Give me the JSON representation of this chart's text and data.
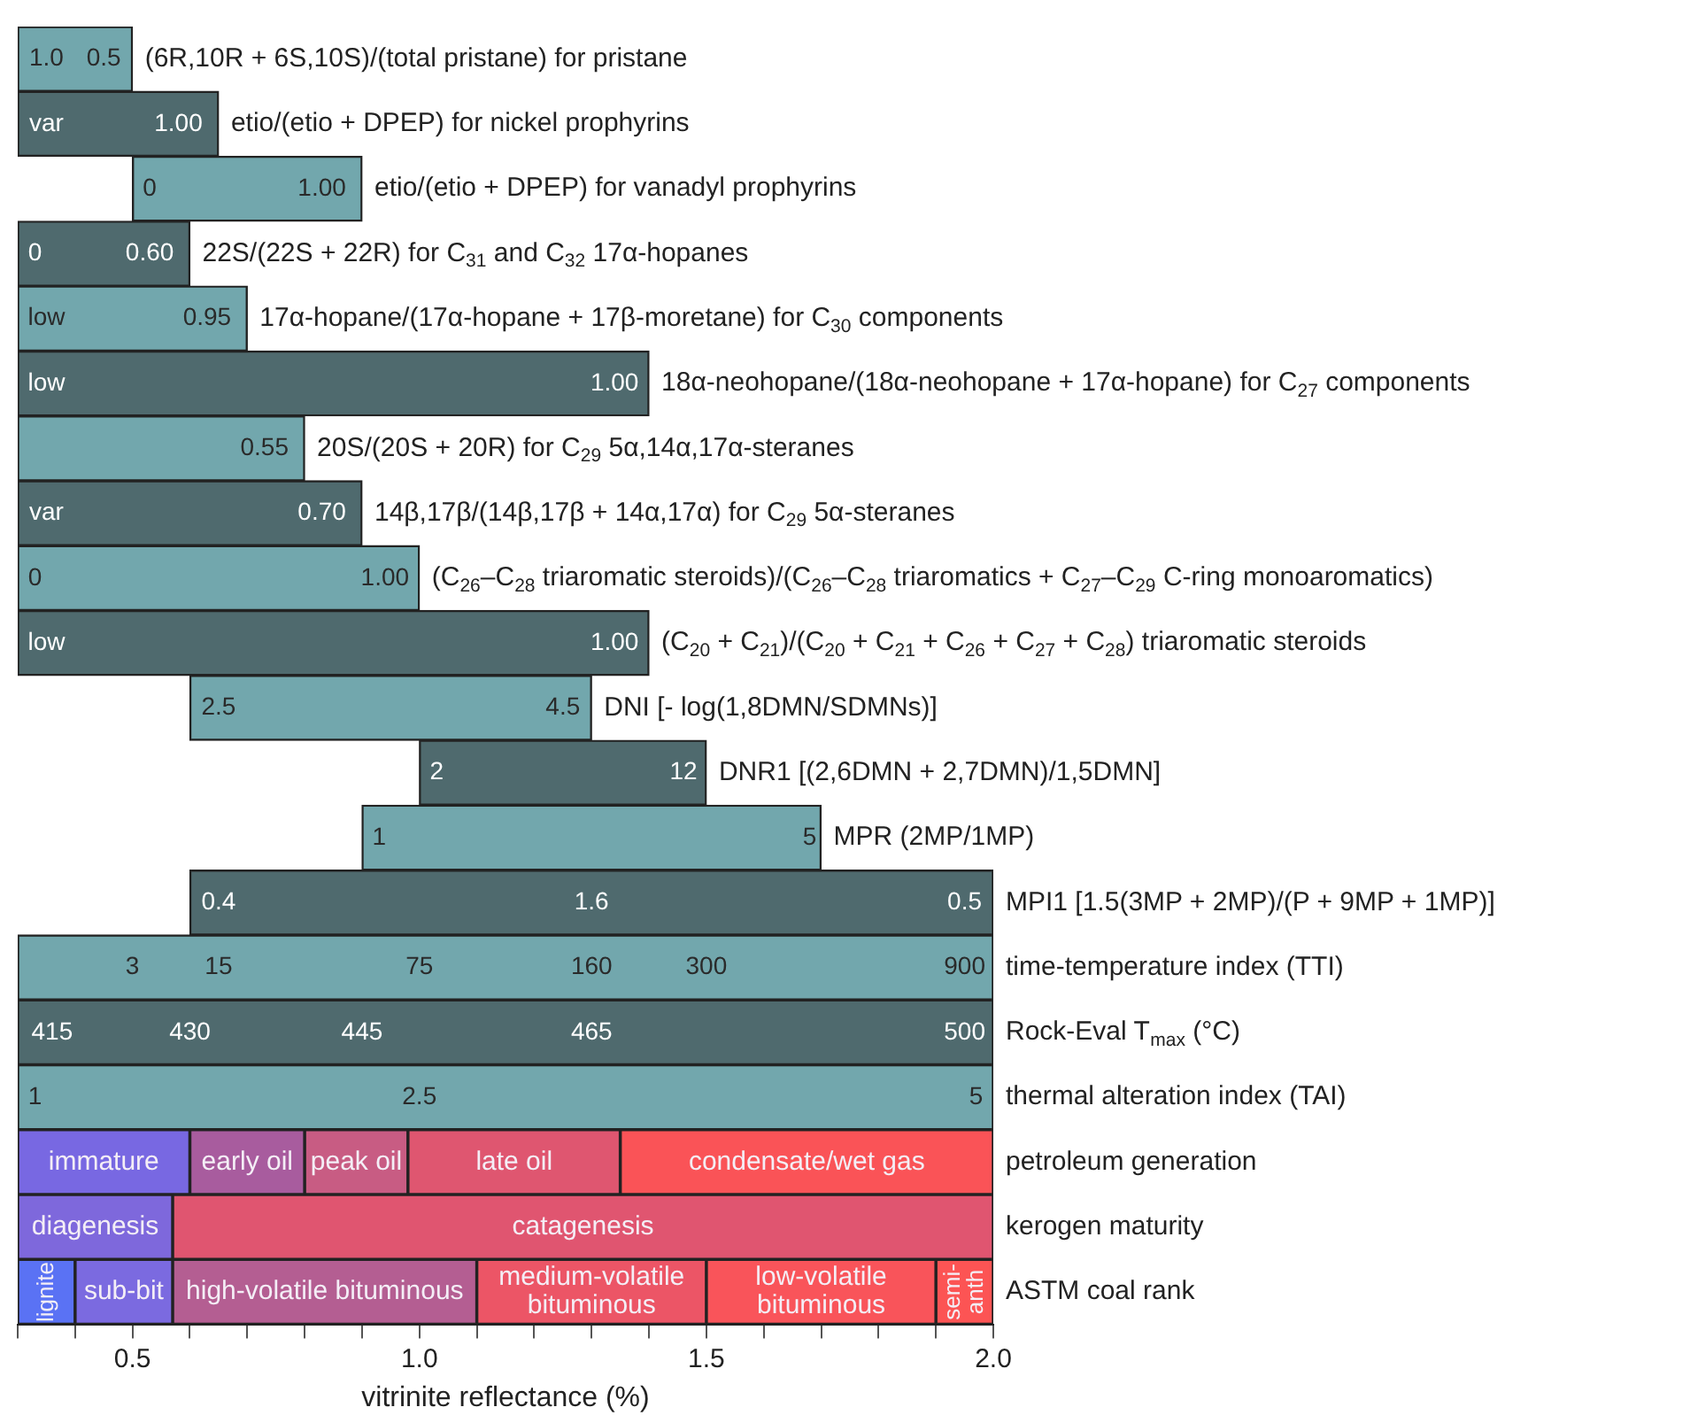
{
  "chart_data": {
    "type": "bar",
    "orientation": "horizontal",
    "xlabel": "vitrinite reflectance (%)",
    "categories": [
      "(6R,10R + 6S,10S)/(total pristane) for pristane",
      "etio/(etio + DPEP) for nickel prophyrins",
      "etio/(etio + DPEP) for vanadyl prophyrins",
      "22S/(22S + 22R) for C$_{31}$ and C$_{32}$ 17α-hopanes",
      "17α-hopane/(17α-hopane + 17β-moretane) for C$_{30}$ components",
      "18α-neohopane/(18α-neohopane + 17α-hopane) for C$_{27}$ components",
      "20S/(20S + 20R) for C$_{29}$ 5α,14α,17α-steranes",
      "14β,17β/(14β,17β + 14α,17α) for C$_{29}$ 5α-steranes",
      "(C$_{26}$–C$_{28}$ triaromatic steroids)/(C$_{26}$–C$_{28}$ triaromatics + C$_{27}$–C$_{29}$ C-ring monoaromatics)",
      "(C$_{20}$ + C$_{21}$)/(C$_{20}$ + C$_{21}$ + C$_{26}$ + C$_{27}$ + C$_{28}$) triaromatic steroids",
      "DNI [- log(1,8DMN/SDMNs)]",
      "DNR1 [(2,6DMN + 2,7DMN)/1,5DMN]",
      "MPR (2MP/1MP)",
      "MPI1 [1.5(3MP + 2MP)/(P + 9MP + 1MP)]",
      "time-temperature index (TTI)",
      "Rock-Eval T$_{max}$ (°C)",
      "thermal alteration index (TAI)",
      "petroleum generation",
      "kerogen maturity",
      "ASTM coal rank"
    ],
    "series": [
      {
        "values": [
          0.2,
          0.35,
          0.4,
          0.3,
          0.4,
          1.1,
          0.5,
          0.6,
          0.7,
          1.1,
          0.7,
          0.5,
          0.8,
          1.4,
          1.7,
          1.7,
          1.7,
          null,
          null,
          null
        ],
        "base": [
          0.3,
          0.3,
          0.5,
          0.3,
          0.3,
          0.3,
          0.3,
          0.3,
          0.3,
          0.3,
          0.6,
          1.0,
          0.9,
          0.6,
          0.3,
          0.3,
          0.3,
          null,
          null,
          null
        ],
        "colors": [
          "#72a7ad",
          "#4f6a6e",
          "#72a7ad",
          "#4f6a6e",
          "#72a7ad",
          "#4f6a6e",
          "#72a7ad",
          "#4f6a6e",
          "#72a7ad",
          "#4f6a6e",
          "#72a7ad",
          "#4f6a6e",
          "#72a7ad",
          "#4f6a6e",
          "#72a7ad",
          "#4f6a6e",
          "#72a7ad",
          null,
          null,
          null
        ]
      },
      {
        "name": "immature",
        "color": "#7868e2",
        "values": [
          null,
          null,
          null,
          null,
          null,
          null,
          null,
          null,
          null,
          null,
          null,
          null,
          null,
          null,
          null,
          null,
          null,
          0.3,
          null,
          null
        ],
        "base": [
          null,
          null,
          null,
          null,
          null,
          null,
          null,
          null,
          null,
          null,
          null,
          null,
          null,
          null,
          null,
          null,
          null,
          0.3,
          null,
          null
        ]
      },
      {
        "name": "early oil",
        "color": "#a85c9e",
        "values": [
          null,
          null,
          null,
          null,
          null,
          null,
          null,
          null,
          null,
          null,
          null,
          null,
          null,
          null,
          null,
          null,
          null,
          0.2,
          null,
          null
        ],
        "base": [
          null,
          null,
          null,
          null,
          null,
          null,
          null,
          null,
          null,
          null,
          null,
          null,
          null,
          null,
          null,
          null,
          null,
          0.6,
          null,
          null
        ]
      },
      {
        "name": "peak oil",
        "color": "#c85c83",
        "values": [
          null,
          null,
          null,
          null,
          null,
          null,
          null,
          null,
          null,
          null,
          null,
          null,
          null,
          null,
          null,
          null,
          null,
          0.18,
          null,
          null
        ],
        "base": [
          null,
          null,
          null,
          null,
          null,
          null,
          null,
          null,
          null,
          null,
          null,
          null,
          null,
          null,
          null,
          null,
          null,
          0.8,
          null,
          null
        ]
      },
      {
        "name": "late oil",
        "color": "#df5670",
        "values": [
          null,
          null,
          null,
          null,
          null,
          null,
          null,
          null,
          null,
          null,
          null,
          null,
          null,
          null,
          null,
          null,
          null,
          0.37,
          null,
          null
        ],
        "base": [
          null,
          null,
          null,
          null,
          null,
          null,
          null,
          null,
          null,
          null,
          null,
          null,
          null,
          null,
          null,
          null,
          null,
          0.98,
          null,
          null
        ]
      },
      {
        "name": "condensate/wet gas",
        "color": "#fa5357",
        "values": [
          null,
          null,
          null,
          null,
          null,
          null,
          null,
          null,
          null,
          null,
          null,
          null,
          null,
          null,
          null,
          null,
          null,
          0.65,
          null,
          null
        ],
        "base": [
          null,
          null,
          null,
          null,
          null,
          null,
          null,
          null,
          null,
          null,
          null,
          null,
          null,
          null,
          null,
          null,
          null,
          1.35,
          null,
          null
        ]
      },
      {
        "name": "diagenesis",
        "color": "#7e68dc",
        "values": [
          null,
          null,
          null,
          null,
          null,
          null,
          null,
          null,
          null,
          null,
          null,
          null,
          null,
          null,
          null,
          null,
          null,
          null,
          0.27,
          null
        ],
        "base": [
          null,
          null,
          null,
          null,
          null,
          null,
          null,
          null,
          null,
          null,
          null,
          null,
          null,
          null,
          null,
          null,
          null,
          null,
          0.3,
          null
        ]
      },
      {
        "name": "catagenesis",
        "color": "#e05570",
        "values": [
          null,
          null,
          null,
          null,
          null,
          null,
          null,
          null,
          null,
          null,
          null,
          null,
          null,
          null,
          null,
          null,
          null,
          null,
          1.43,
          null
        ],
        "base": [
          null,
          null,
          null,
          null,
          null,
          null,
          null,
          null,
          null,
          null,
          null,
          null,
          null,
          null,
          null,
          null,
          null,
          null,
          0.57,
          null
        ]
      },
      {
        "name": "lignite",
        "color": "#5a72f4",
        "values": [
          null,
          null,
          null,
          null,
          null,
          null,
          null,
          null,
          null,
          null,
          null,
          null,
          null,
          null,
          null,
          null,
          null,
          null,
          null,
          0.1
        ],
        "base": [
          null,
          null,
          null,
          null,
          null,
          null,
          null,
          null,
          null,
          null,
          null,
          null,
          null,
          null,
          null,
          null,
          null,
          null,
          null,
          0.3
        ]
      },
      {
        "name": "sub-bit",
        "color": "#7b6ae0",
        "values": [
          null,
          null,
          null,
          null,
          null,
          null,
          null,
          null,
          null,
          null,
          null,
          null,
          null,
          null,
          null,
          null,
          null,
          null,
          null,
          0.17
        ],
        "base": [
          null,
          null,
          null,
          null,
          null,
          null,
          null,
          null,
          null,
          null,
          null,
          null,
          null,
          null,
          null,
          null,
          null,
          null,
          null,
          0.4
        ]
      },
      {
        "name": "high-volatile bituminous",
        "color": "#b45e92",
        "values": [
          null,
          null,
          null,
          null,
          null,
          null,
          null,
          null,
          null,
          null,
          null,
          null,
          null,
          null,
          null,
          null,
          null,
          null,
          null,
          0.53
        ],
        "base": [
          null,
          null,
          null,
          null,
          null,
          null,
          null,
          null,
          null,
          null,
          null,
          null,
          null,
          null,
          null,
          null,
          null,
          null,
          null,
          0.57
        ]
      },
      {
        "name": "medium-volatile bituminous",
        "color": "#ec5566",
        "values": [
          null,
          null,
          null,
          null,
          null,
          null,
          null,
          null,
          null,
          null,
          null,
          null,
          null,
          null,
          null,
          null,
          null,
          null,
          null,
          0.4
        ],
        "base": [
          null,
          null,
          null,
          null,
          null,
          null,
          null,
          null,
          null,
          null,
          null,
          null,
          null,
          null,
          null,
          null,
          null,
          null,
          null,
          1.1
        ]
      },
      {
        "name": "low-volatile bituminous",
        "color": "#f9545a",
        "values": [
          null,
          null,
          null,
          null,
          null,
          null,
          null,
          null,
          null,
          null,
          null,
          null,
          null,
          null,
          null,
          null,
          null,
          null,
          null,
          0.4
        ],
        "base": [
          null,
          null,
          null,
          null,
          null,
          null,
          null,
          null,
          null,
          null,
          null,
          null,
          null,
          null,
          null,
          null,
          null,
          null,
          null,
          1.5
        ]
      },
      {
        "name": "semi-anth",
        "color": "#fc5454",
        "values": [
          null,
          null,
          null,
          null,
          null,
          null,
          null,
          null,
          null,
          null,
          null,
          null,
          null,
          null,
          null,
          null,
          null,
          null,
          null,
          0.1
        ],
        "base": [
          null,
          null,
          null,
          null,
          null,
          null,
          null,
          null,
          null,
          null,
          null,
          null,
          null,
          null,
          null,
          null,
          null,
          null,
          null,
          1.9
        ]
      }
    ],
    "xlim": [
      0.3,
      2.0
    ],
    "xticks": [
      {
        "value": 0.3,
        "label": null
      },
      {
        "value": 0.4,
        "label": null
      },
      {
        "value": 0.5,
        "label": "0.5"
      },
      {
        "value": 0.6,
        "label": null
      },
      {
        "value": 0.7,
        "label": null
      },
      {
        "value": 0.8,
        "label": null
      },
      {
        "value": 0.9,
        "label": null
      },
      {
        "value": 1.0,
        "label": "1.0"
      },
      {
        "value": 1.1,
        "label": null
      },
      {
        "value": 1.2,
        "label": null
      },
      {
        "value": 1.3,
        "label": null
      },
      {
        "value": 1.4,
        "label": null
      },
      {
        "value": 1.5,
        "label": "1.5"
      },
      {
        "value": 1.6,
        "label": null
      },
      {
        "value": 1.7,
        "label": null
      },
      {
        "value": 1.8,
        "label": null
      },
      {
        "value": 1.9,
        "label": null
      },
      {
        "value": 2.0,
        "label": "2.0"
      }
    ],
    "grid": false,
    "legend": false,
    "annotations": [
      {
        "text": "1.0",
        "x": 0.35,
        "y": "(6R,10R + 6S,10S)/(total pristane) for pristane"
      },
      {
        "text": "0.5",
        "x": 0.45,
        "y": "(6R,10R + 6S,10S)/(total pristane) for pristane"
      },
      {
        "text": "var",
        "x": 0.35,
        "y": "etio/(etio + DPEP) for nickel prophyrins"
      },
      {
        "text": "1.00",
        "x": 0.58,
        "y": "etio/(etio + DPEP) for nickel prophyrins"
      },
      {
        "text": "0",
        "x": 0.53,
        "y": "etio/(etio + DPEP) for vanadyl prophyrins"
      },
      {
        "text": "1.00",
        "x": 0.83,
        "y": "etio/(etio + DPEP) for vanadyl prophyrins"
      },
      {
        "text": "0",
        "x": 0.33,
        "y": "22S/(22S + 22R) for C$_{31}$ and C$_{32}$ 17α-hopanes"
      },
      {
        "text": "0.60",
        "x": 0.53,
        "y": "22S/(22S + 22R) for C$_{31}$ and C$_{32}$ 17α-hopanes"
      },
      {
        "text": "low",
        "x": 0.35,
        "y": "17α-hopane/(17α-hopane + 17β-moretane) for C$_{30}$ components"
      },
      {
        "text": "0.95",
        "x": 0.63,
        "y": "17α-hopane/(17α-hopane + 17β-moretane) for C$_{30}$ components"
      },
      {
        "text": "low",
        "x": 0.35,
        "y": "18α-neohopane/(18α-neohopane + 17α-hopane) for C$_{27}$ components"
      },
      {
        "text": "1.00",
        "x": 1.34,
        "y": "18α-neohopane/(18α-neohopane + 17α-hopane) for C$_{27}$ components"
      },
      {
        "text": "0.55",
        "x": 0.73,
        "y": "20S/(20S + 20R) for C$_{29}$ 5α,14α,17α-steranes"
      },
      {
        "text": "var",
        "x": 0.35,
        "y": "14β,17β/(14β,17β + 14α,17α) for C$_{29}$ 5α-steranes"
      },
      {
        "text": "0.70",
        "x": 0.83,
        "y": "14β,17β/(14β,17β + 14α,17α) for C$_{29}$ 5α-steranes"
      },
      {
        "text": "0",
        "x": 0.33,
        "y": "(C$_{26}$–C$_{28}$ triaromatic steroids)/(C$_{26}$–C$_{28}$ triaromatics + C$_{27}$–C$_{29}$ C-ring monoaromatics)"
      },
      {
        "text": "1.00",
        "x": 0.94,
        "y": "(C$_{26}$–C$_{28}$ triaromatic steroids)/(C$_{26}$–C$_{28}$ triaromatics + C$_{27}$–C$_{29}$ C-ring monoaromatics)"
      },
      {
        "text": "low",
        "x": 0.35,
        "y": "(C$_{20}$ + C$_{21}$)/(C$_{20}$ + C$_{21}$ + C$_{26}$ + C$_{27}$ + C$_{28}$) triaromatic steroids"
      },
      {
        "text": "1.00",
        "x": 1.34,
        "y": "(C$_{20}$ + C$_{21}$)/(C$_{20}$ + C$_{21}$ + C$_{26}$ + C$_{27}$ + C$_{28}$) triaromatic steroids"
      },
      {
        "text": "2.5",
        "x": 0.65,
        "y": "DNI [- log(1,8DMN/SDMNs)]"
      },
      {
        "text": "4.5",
        "x": 1.25,
        "y": "DNI [- log(1,8DMN/SDMNs)]"
      },
      {
        "text": "2",
        "x": 1.03,
        "y": "DNR1 [(2,6DMN + 2,7DMN)/1,5DMN]"
      },
      {
        "text": "12",
        "x": 1.46,
        "y": "DNR1 [(2,6DMN + 2,7DMN)/1,5DMN]"
      },
      {
        "text": "1",
        "x": 0.93,
        "y": "MPR (2MP/1MP)"
      },
      {
        "text": "5",
        "x": 1.68,
        "y": "MPR (2MP/1MP)"
      },
      {
        "text": "0.4",
        "x": 0.65,
        "y": "MPI1 [1.5(3MP + 2MP)/(P + 9MP + 1MP)]"
      },
      {
        "text": "1.6",
        "x": 1.3,
        "y": "MPI1 [1.5(3MP + 2MP)/(P + 9MP + 1MP)]"
      },
      {
        "text": "0.5",
        "x": 1.95,
        "y": "MPI1 [1.5(3MP + 2MP)/(P + 9MP + 1MP)]"
      },
      {
        "text": "3",
        "x": 0.5,
        "y": "time-temperature index (TTI)"
      },
      {
        "text": "15",
        "x": 0.65,
        "y": "time-temperature index (TTI)"
      },
      {
        "text": "75",
        "x": 1.0,
        "y": "time-temperature index (TTI)"
      },
      {
        "text": "160",
        "x": 1.3,
        "y": "time-temperature index (TTI)"
      },
      {
        "text": "300",
        "x": 1.5,
        "y": "time-temperature index (TTI)"
      },
      {
        "text": "900",
        "x": 1.95,
        "y": "time-temperature index (TTI)"
      },
      {
        "text": "415",
        "x": 0.36,
        "y": "Rock-Eval T$_{max}$ (°C)"
      },
      {
        "text": "430",
        "x": 0.6,
        "y": "Rock-Eval T$_{max}$ (°C)"
      },
      {
        "text": "445",
        "x": 0.9,
        "y": "Rock-Eval T$_{max}$ (°C)"
      },
      {
        "text": "465",
        "x": 1.3,
        "y": "Rock-Eval T$_{max}$ (°C)"
      },
      {
        "text": "500",
        "x": 1.95,
        "y": "Rock-Eval T$_{max}$ (°C)"
      },
      {
        "text": "1",
        "x": 0.33,
        "y": "thermal alteration index (TAI)"
      },
      {
        "text": "2.5",
        "x": 1.0,
        "y": "thermal alteration index (TAI)"
      },
      {
        "text": "5",
        "x": 1.97,
        "y": "thermal alteration index (TAI)"
      }
    ]
  }
}
